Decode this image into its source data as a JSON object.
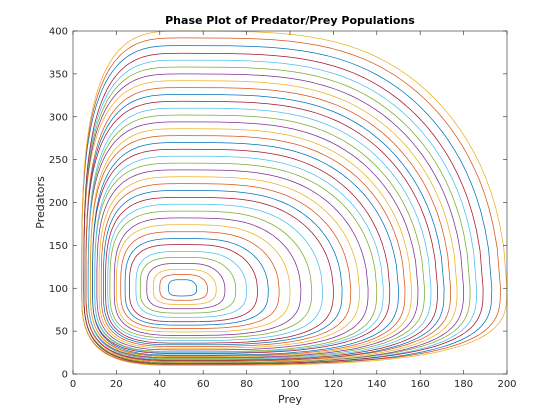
{
  "chart_data": {
    "type": "line",
    "title": "Phase Plot of Predator/Prey Populations",
    "xlabel": "Prey",
    "ylabel": "Predators",
    "xlim": [
      0,
      200
    ],
    "ylim": [
      0,
      400
    ],
    "xticks": [
      0,
      20,
      40,
      60,
      80,
      100,
      120,
      140,
      160,
      180,
      200
    ],
    "yticks": [
      0,
      50,
      100,
      150,
      200,
      250,
      300,
      350,
      400
    ],
    "grid": false,
    "legend": "none",
    "equilibrium": [
      50,
      100
    ],
    "color_cycle": [
      "#0072BD",
      "#D95319",
      "#EDB120",
      "#7E2F8E",
      "#77AC30",
      "#4DBEEE",
      "#A2142F"
    ],
    "series": [
      {
        "x_max": 57,
        "y_max": 110,
        "x_min": 44,
        "y_min": 91
      },
      {
        "x_max": 62,
        "y_max": 116,
        "x_min": 40,
        "y_min": 86
      },
      {
        "x_max": 66,
        "y_max": 122,
        "x_min": 37,
        "y_min": 81
      },
      {
        "x_max": 70,
        "y_max": 129,
        "x_min": 34,
        "y_min": 76
      },
      {
        "x_max": 75,
        "y_max": 136,
        "x_min": 31,
        "y_min": 71
      },
      {
        "x_max": 80,
        "y_max": 143,
        "x_min": 29,
        "y_min": 66
      },
      {
        "x_max": 85,
        "y_max": 151,
        "x_min": 26,
        "y_min": 61
      },
      {
        "x_max": 90,
        "y_max": 158,
        "x_min": 24,
        "y_min": 57
      },
      {
        "x_max": 95,
        "y_max": 166,
        "x_min": 22,
        "y_min": 53
      },
      {
        "x_max": 100,
        "y_max": 174,
        "x_min": 20,
        "y_min": 49
      },
      {
        "x_max": 105,
        "y_max": 182,
        "x_min": 19,
        "y_min": 45
      },
      {
        "x_max": 110,
        "y_max": 190,
        "x_min": 17,
        "y_min": 42
      },
      {
        "x_max": 115,
        "y_max": 198,
        "x_min": 16,
        "y_min": 39
      },
      {
        "x_max": 120,
        "y_max": 206,
        "x_min": 15,
        "y_min": 36
      },
      {
        "x_max": 124,
        "y_max": 214,
        "x_min": 14,
        "y_min": 34
      },
      {
        "x_max": 128,
        "y_max": 222,
        "x_min": 13,
        "y_min": 32
      },
      {
        "x_max": 132,
        "y_max": 230,
        "x_min": 12,
        "y_min": 30
      },
      {
        "x_max": 136,
        "y_max": 238,
        "x_min": 11,
        "y_min": 28
      },
      {
        "x_max": 140,
        "y_max": 246,
        "x_min": 10,
        "y_min": 26
      },
      {
        "x_max": 143,
        "y_max": 254,
        "x_min": 10,
        "y_min": 25
      },
      {
        "x_max": 146,
        "y_max": 262,
        "x_min": 9,
        "y_min": 24
      },
      {
        "x_max": 150,
        "y_max": 270,
        "x_min": 9,
        "y_min": 22
      },
      {
        "x_max": 153,
        "y_max": 278,
        "x_min": 8,
        "y_min": 21
      },
      {
        "x_max": 156,
        "y_max": 286,
        "x_min": 8,
        "y_min": 20
      },
      {
        "x_max": 159,
        "y_max": 294,
        "x_min": 7,
        "y_min": 19
      },
      {
        "x_max": 162,
        "y_max": 302,
        "x_min": 7,
        "y_min": 18
      },
      {
        "x_max": 165,
        "y_max": 310,
        "x_min": 7,
        "y_min": 17
      },
      {
        "x_max": 168,
        "y_max": 318,
        "x_min": 6,
        "y_min": 16
      },
      {
        "x_max": 171,
        "y_max": 326,
        "x_min": 6,
        "y_min": 15
      },
      {
        "x_max": 174,
        "y_max": 334,
        "x_min": 6,
        "y_min": 15
      },
      {
        "x_max": 177,
        "y_max": 342,
        "x_min": 5,
        "y_min": 14
      },
      {
        "x_max": 180,
        "y_max": 350,
        "x_min": 5,
        "y_min": 13
      },
      {
        "x_max": 183,
        "y_max": 358,
        "x_min": 5,
        "y_min": 13
      },
      {
        "x_max": 186,
        "y_max": 366,
        "x_min": 5,
        "y_min": 12
      },
      {
        "x_max": 189,
        "y_max": 374,
        "x_min": 5,
        "y_min": 12
      },
      {
        "x_max": 193,
        "y_max": 383,
        "x_min": 4,
        "y_min": 11
      },
      {
        "x_max": 197,
        "y_max": 392,
        "x_min": 4,
        "y_min": 11
      },
      {
        "x_max": 200,
        "y_max": 400,
        "x_min": 4,
        "y_min": 10
      }
    ]
  }
}
